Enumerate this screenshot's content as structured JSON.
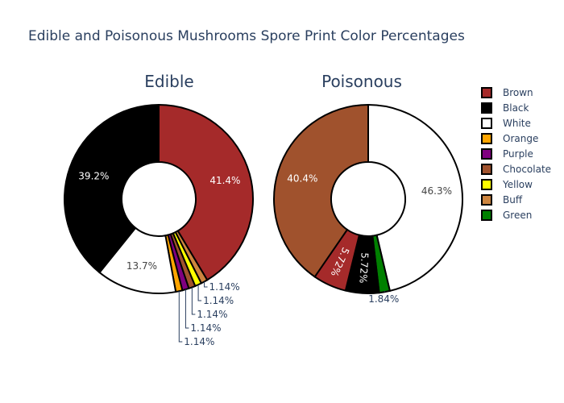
{
  "chart_data": {
    "type": "pie",
    "hole": true,
    "title": "Edible and Poisonous Mushrooms Spore Print Color Percentages",
    "legend_position": "right",
    "legend": [
      {
        "label": "Brown",
        "color": "#a52a2a"
      },
      {
        "label": "Black",
        "color": "#000000"
      },
      {
        "label": "White",
        "color": "#ffffff"
      },
      {
        "label": "Orange",
        "color": "#ffa500"
      },
      {
        "label": "Purple",
        "color": "#800080"
      },
      {
        "label": "Chocolate",
        "color": "#a0522d"
      },
      {
        "label": "Yellow",
        "color": "#ffff00"
      },
      {
        "label": "Buff",
        "color": "#cd853f"
      },
      {
        "label": "Green",
        "color": "#008000"
      }
    ],
    "pies": [
      {
        "title": "Edible",
        "slices": [
          {
            "label": "Brown",
            "value": 41.4,
            "text": "41.4%"
          },
          {
            "label": "Buff",
            "value": 1.14,
            "text": "1.14%"
          },
          {
            "label": "Yellow",
            "value": 1.14,
            "text": "1.14%"
          },
          {
            "label": "Chocolate",
            "value": 1.14,
            "text": "1.14%"
          },
          {
            "label": "Purple",
            "value": 1.14,
            "text": "1.14%"
          },
          {
            "label": "Orange",
            "value": 1.14,
            "text": "1.14%"
          },
          {
            "label": "White",
            "value": 13.7,
            "text": "13.7%"
          },
          {
            "label": "Black",
            "value": 39.2,
            "text": "39.2%"
          }
        ]
      },
      {
        "title": "Poisonous",
        "slices": [
          {
            "label": "White",
            "value": 46.3,
            "text": "46.3%"
          },
          {
            "label": "Green",
            "value": 1.84,
            "text": "1.84%"
          },
          {
            "label": "Black",
            "value": 5.72,
            "text": "5.72%"
          },
          {
            "label": "Brown",
            "value": 5.72,
            "text": "5.72%"
          },
          {
            "label": "Chocolate",
            "value": 40.4,
            "text": "40.4%"
          }
        ]
      }
    ]
  }
}
